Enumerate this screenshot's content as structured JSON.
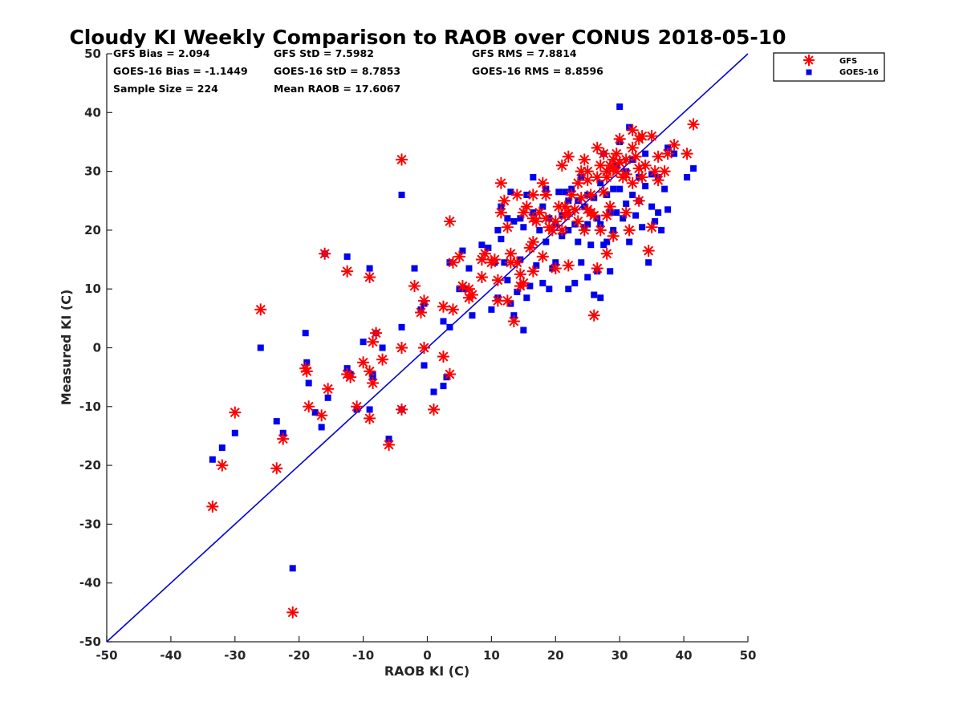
{
  "chart_data": {
    "type": "scatter",
    "title": "Cloudy KI Weekly Comparison to RAOB over CONUS 2018-05-10",
    "xlabel": "RAOB KI (C)",
    "ylabel": "Measured KI (C)",
    "xlim": [
      -50,
      50
    ],
    "ylim": [
      -50,
      50
    ],
    "xticks": [
      "-50",
      "-40",
      "-30",
      "-20",
      "-10",
      "0",
      "10",
      "20",
      "30",
      "40",
      "50"
    ],
    "yticks": [
      "-50",
      "-40",
      "-30",
      "-20",
      "-10",
      "0",
      "10",
      "20",
      "30",
      "40",
      "50"
    ],
    "grid": false,
    "legend_position": "top-right, outside plot",
    "stats": [
      [
        "GFS Bias = 2.094",
        "GFS StD = 7.5982",
        "GFS RMS = 7.8814"
      ],
      [
        "GOES-16 Bias = -1.1449",
        "GOES-16 StD = 8.7853",
        "GOES-16 RMS = 8.8596"
      ],
      [
        "Sample Size = 224",
        "Mean RAOB = 17.6067",
        ""
      ]
    ],
    "reference_line": {
      "from": [
        -50,
        -50
      ],
      "to": [
        50,
        50
      ],
      "color": "#0000dd"
    },
    "series": [
      {
        "name": "GFS",
        "marker": "asterisk",
        "color": "#ff0000",
        "points": [
          [
            -33.5,
            -27
          ],
          [
            -32,
            -20
          ],
          [
            -30,
            -11
          ],
          [
            -26,
            6.5
          ],
          [
            -23.5,
            -20.5
          ],
          [
            -22.5,
            -15.5
          ],
          [
            -21,
            -45
          ],
          [
            -19,
            -3.5
          ],
          [
            -18.8,
            -4
          ],
          [
            -18.5,
            -10
          ],
          [
            -16.5,
            -11.5
          ],
          [
            -16,
            16
          ],
          [
            -15.5,
            -7
          ],
          [
            -12.5,
            13
          ],
          [
            -12.5,
            -4.5
          ],
          [
            -12,
            -5
          ],
          [
            -11,
            -10
          ],
          [
            -10,
            -2.5
          ],
          [
            -9,
            -12
          ],
          [
            -9,
            12
          ],
          [
            -9,
            -4
          ],
          [
            -8.5,
            1
          ],
          [
            -8.5,
            -6
          ],
          [
            -8,
            2.5
          ],
          [
            -7,
            -2
          ],
          [
            -6,
            -16.5
          ],
          [
            -4,
            32
          ],
          [
            -4,
            -10.5
          ],
          [
            -4,
            0
          ],
          [
            -2,
            10.5
          ],
          [
            -1,
            6
          ],
          [
            -0.5,
            8
          ],
          [
            -0.5,
            0
          ],
          [
            1,
            -10.5
          ],
          [
            2.5,
            7
          ],
          [
            2.5,
            -1.5
          ],
          [
            3.5,
            21.5
          ],
          [
            3.5,
            -4.5
          ],
          [
            4,
            6.5
          ],
          [
            4,
            14.5
          ],
          [
            5,
            15.5
          ],
          [
            5.5,
            10.5
          ],
          [
            6.5,
            10
          ],
          [
            6.5,
            8.5
          ],
          [
            7,
            9
          ],
          [
            8.5,
            12
          ],
          [
            8.5,
            15
          ],
          [
            9,
            16
          ],
          [
            10,
            14.5
          ],
          [
            10.5,
            15
          ],
          [
            11,
            8
          ],
          [
            11,
            11.5
          ],
          [
            11.5,
            23
          ],
          [
            11.5,
            28
          ],
          [
            12,
            25
          ],
          [
            12.5,
            20.5
          ],
          [
            12.5,
            8
          ],
          [
            13,
            14.5
          ],
          [
            13,
            16
          ],
          [
            13.5,
            4.5
          ],
          [
            14,
            14.5
          ],
          [
            14,
            26
          ],
          [
            14.5,
            10.5
          ],
          [
            14.5,
            12.5
          ],
          [
            15,
            11
          ],
          [
            15,
            23
          ],
          [
            15.5,
            24
          ],
          [
            16,
            17
          ],
          [
            16.5,
            13
          ],
          [
            16.5,
            18
          ],
          [
            16.5,
            22
          ],
          [
            16.5,
            26
          ],
          [
            17,
            21.5
          ],
          [
            17.5,
            23
          ],
          [
            18,
            15.5
          ],
          [
            18,
            28
          ],
          [
            18.5,
            22
          ],
          [
            18.5,
            26
          ],
          [
            19,
            20.5
          ],
          [
            19.5,
            20
          ],
          [
            20,
            13.5
          ],
          [
            20,
            21.5
          ],
          [
            20.5,
            24
          ],
          [
            21,
            31
          ],
          [
            21,
            20
          ],
          [
            21.5,
            22.5
          ],
          [
            21.5,
            24
          ],
          [
            22,
            14
          ],
          [
            22,
            32.5
          ],
          [
            22,
            23
          ],
          [
            22.5,
            26
          ],
          [
            23,
            23.5
          ],
          [
            23.5,
            21.5
          ],
          [
            23.5,
            28
          ],
          [
            24,
            30
          ],
          [
            24,
            25.5
          ],
          [
            24.5,
            20
          ],
          [
            24.5,
            32
          ],
          [
            25,
            23.5
          ],
          [
            25,
            30
          ],
          [
            25,
            28.5
          ],
          [
            25.5,
            23
          ],
          [
            25.5,
            26
          ],
          [
            26,
            22.5
          ],
          [
            26,
            5.5
          ],
          [
            26.5,
            34
          ],
          [
            26.5,
            29
          ],
          [
            26.5,
            13.5
          ],
          [
            27,
            31
          ],
          [
            27,
            20
          ],
          [
            27.5,
            26.5
          ],
          [
            27.5,
            33
          ],
          [
            28,
            30
          ],
          [
            28,
            29
          ],
          [
            28,
            22.5
          ],
          [
            28,
            16
          ],
          [
            28.5,
            31
          ],
          [
            28.5,
            24
          ],
          [
            29,
            32
          ],
          [
            29,
            30.5
          ],
          [
            29,
            19
          ],
          [
            29.5,
            33
          ],
          [
            29.5,
            30
          ],
          [
            30,
            35.5
          ],
          [
            30,
            31.5
          ],
          [
            30.5,
            29
          ],
          [
            31,
            32
          ],
          [
            31,
            29.5
          ],
          [
            31,
            23
          ],
          [
            31.5,
            20
          ],
          [
            32,
            37
          ],
          [
            32,
            34
          ],
          [
            32,
            28
          ],
          [
            32.5,
            32.5
          ],
          [
            33,
            35.5
          ],
          [
            33,
            30.5
          ],
          [
            33,
            25
          ],
          [
            33.5,
            29
          ],
          [
            33.5,
            36
          ],
          [
            34,
            31
          ],
          [
            34.5,
            16.5
          ],
          [
            35,
            36
          ],
          [
            35,
            20.5
          ],
          [
            35.5,
            30
          ],
          [
            36,
            32.5
          ],
          [
            36,
            28.5
          ],
          [
            37,
            30
          ],
          [
            37.5,
            33
          ],
          [
            38.5,
            34.5
          ],
          [
            40.5,
            33
          ],
          [
            41.5,
            38
          ]
        ]
      },
      {
        "name": "GOES-16",
        "marker": "square",
        "color": "#0000ee",
        "points": [
          [
            -33.5,
            -19
          ],
          [
            -32,
            -17
          ],
          [
            -30,
            -14.5
          ],
          [
            -26,
            0
          ],
          [
            -23.5,
            -12.5
          ],
          [
            -22.5,
            -14.5
          ],
          [
            -21,
            -37.5
          ],
          [
            -19,
            2.5
          ],
          [
            -18.8,
            -2.5
          ],
          [
            -18.5,
            -6
          ],
          [
            -17.5,
            -11
          ],
          [
            -16.5,
            -13.5
          ],
          [
            -16,
            16
          ],
          [
            -15.5,
            -8.5
          ],
          [
            -12.5,
            15.5
          ],
          [
            -12.5,
            -3.5
          ],
          [
            -12,
            -4.5
          ],
          [
            -11,
            -10.5
          ],
          [
            -10,
            1
          ],
          [
            -9,
            -10.5
          ],
          [
            -9,
            13.5
          ],
          [
            -8.5,
            -4.5
          ],
          [
            -8.5,
            -5
          ],
          [
            -8,
            2.5
          ],
          [
            -7,
            0
          ],
          [
            -6,
            -15.5
          ],
          [
            -4,
            26
          ],
          [
            -4,
            -10.5
          ],
          [
            -4,
            3.5
          ],
          [
            -2,
            13.5
          ],
          [
            -1,
            6.5
          ],
          [
            -0.5,
            7.5
          ],
          [
            -0.5,
            -3
          ],
          [
            1,
            -7.5
          ],
          [
            2.5,
            -6.5
          ],
          [
            2.5,
            4.5
          ],
          [
            3,
            -5
          ],
          [
            3.5,
            14.5
          ],
          [
            3.5,
            3.5
          ],
          [
            5,
            10
          ],
          [
            5.5,
            16.5
          ],
          [
            6,
            10
          ],
          [
            6.5,
            13.5
          ],
          [
            7,
            5.5
          ],
          [
            8.5,
            17.5
          ],
          [
            9.5,
            17
          ],
          [
            10,
            6.5
          ],
          [
            10.5,
            14.5
          ],
          [
            11,
            8.5
          ],
          [
            11,
            20
          ],
          [
            11.5,
            18.5
          ],
          [
            11.5,
            24
          ],
          [
            12,
            14.5
          ],
          [
            12.5,
            22
          ],
          [
            12.5,
            11.5
          ],
          [
            13,
            26.5
          ],
          [
            13,
            7.5
          ],
          [
            13.5,
            21.5
          ],
          [
            13.5,
            5.5
          ],
          [
            14,
            9.5
          ],
          [
            14.5,
            22
          ],
          [
            14.5,
            15
          ],
          [
            15,
            3
          ],
          [
            15,
            20.5
          ],
          [
            15.5,
            8.5
          ],
          [
            15.5,
            26
          ],
          [
            16,
            10.5
          ],
          [
            16.5,
            23
          ],
          [
            16.5,
            29
          ],
          [
            17,
            14
          ],
          [
            17.5,
            20
          ],
          [
            18,
            11
          ],
          [
            18,
            24
          ],
          [
            18.5,
            18
          ],
          [
            18.5,
            27
          ],
          [
            19,
            10
          ],
          [
            19,
            22
          ],
          [
            19.5,
            13.5
          ],
          [
            20,
            14.5
          ],
          [
            20,
            21
          ],
          [
            20.5,
            26.5
          ],
          [
            21,
            19
          ],
          [
            21,
            22.5
          ],
          [
            21.5,
            26.5
          ],
          [
            22,
            10
          ],
          [
            22,
            20
          ],
          [
            22,
            25
          ],
          [
            22.5,
            27
          ],
          [
            23,
            11
          ],
          [
            23,
            21
          ],
          [
            23.5,
            18
          ],
          [
            23.5,
            25
          ],
          [
            24,
            14.5
          ],
          [
            24,
            29
          ],
          [
            24.5,
            20.5
          ],
          [
            24.5,
            24
          ],
          [
            25,
            12
          ],
          [
            25,
            26
          ],
          [
            25,
            21
          ],
          [
            25.5,
            17.5
          ],
          [
            26,
            9
          ],
          [
            26,
            25.5
          ],
          [
            26.5,
            13
          ],
          [
            26.5,
            22
          ],
          [
            27,
            8.5
          ],
          [
            27,
            28
          ],
          [
            27,
            21
          ],
          [
            27.5,
            33
          ],
          [
            27.5,
            17.5
          ],
          [
            28,
            26
          ],
          [
            28,
            18
          ],
          [
            28.5,
            23
          ],
          [
            28.5,
            13
          ],
          [
            29,
            27
          ],
          [
            29,
            20
          ],
          [
            29.5,
            31
          ],
          [
            29.5,
            23
          ],
          [
            30,
            41
          ],
          [
            30,
            35
          ],
          [
            30,
            27
          ],
          [
            30.5,
            22
          ],
          [
            31,
            30
          ],
          [
            31,
            24.5
          ],
          [
            31.5,
            37.5
          ],
          [
            31.5,
            18
          ],
          [
            32,
            32
          ],
          [
            32,
            26
          ],
          [
            32.5,
            22.5
          ],
          [
            33,
            29
          ],
          [
            33,
            25
          ],
          [
            33.5,
            20.5
          ],
          [
            34,
            33
          ],
          [
            34,
            27.5
          ],
          [
            34.5,
            14.5
          ],
          [
            35,
            24
          ],
          [
            35,
            29.5
          ],
          [
            35.5,
            21.5
          ],
          [
            36,
            23
          ],
          [
            36,
            29
          ],
          [
            36.5,
            20
          ],
          [
            37,
            27
          ],
          [
            37.5,
            34
          ],
          [
            37.5,
            23.5
          ],
          [
            38.5,
            33
          ],
          [
            40.5,
            29
          ],
          [
            41.5,
            30.5
          ]
        ]
      }
    ]
  }
}
